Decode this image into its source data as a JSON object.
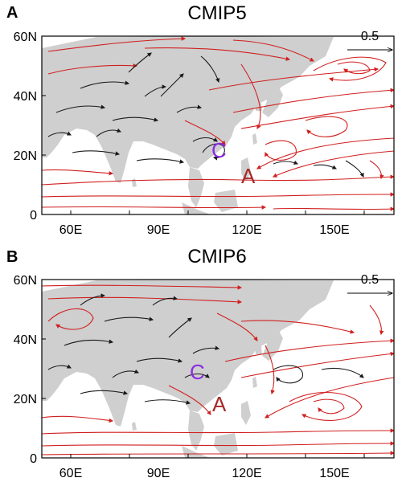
{
  "colors": {
    "land": "#cfcfcf",
    "frame": "#000000",
    "stream_positive": "#d11f1f",
    "stream_other": "#1a1a1a",
    "cyclone": "#8b2be2",
    "anticyclone": "#a52a2a"
  },
  "icons": {
    "reference_arrow": "arrow-right",
    "stream_arrowheads": "arrow-head"
  },
  "panels": [
    {
      "letter": "A",
      "title": "CMIP5",
      "reference_vector": {
        "label": "0.5"
      },
      "x_ticks": [
        "60E",
        "90E",
        "120E",
        "150E"
      ],
      "y_ticks": [
        "60N",
        "40N",
        "20N",
        "0"
      ],
      "labels": {
        "cyclone": "C",
        "anticyclone": "A"
      }
    },
    {
      "letter": "B",
      "title": "CMIP6",
      "reference_vector": {
        "label": "0.5"
      },
      "x_ticks": [
        "60E",
        "90E",
        "120E",
        "150E"
      ],
      "y_ticks": [
        "60N",
        "40N",
        "20N",
        "0"
      ],
      "labels": {
        "cyclone": "C",
        "anticyclone": "A"
      }
    }
  ]
}
